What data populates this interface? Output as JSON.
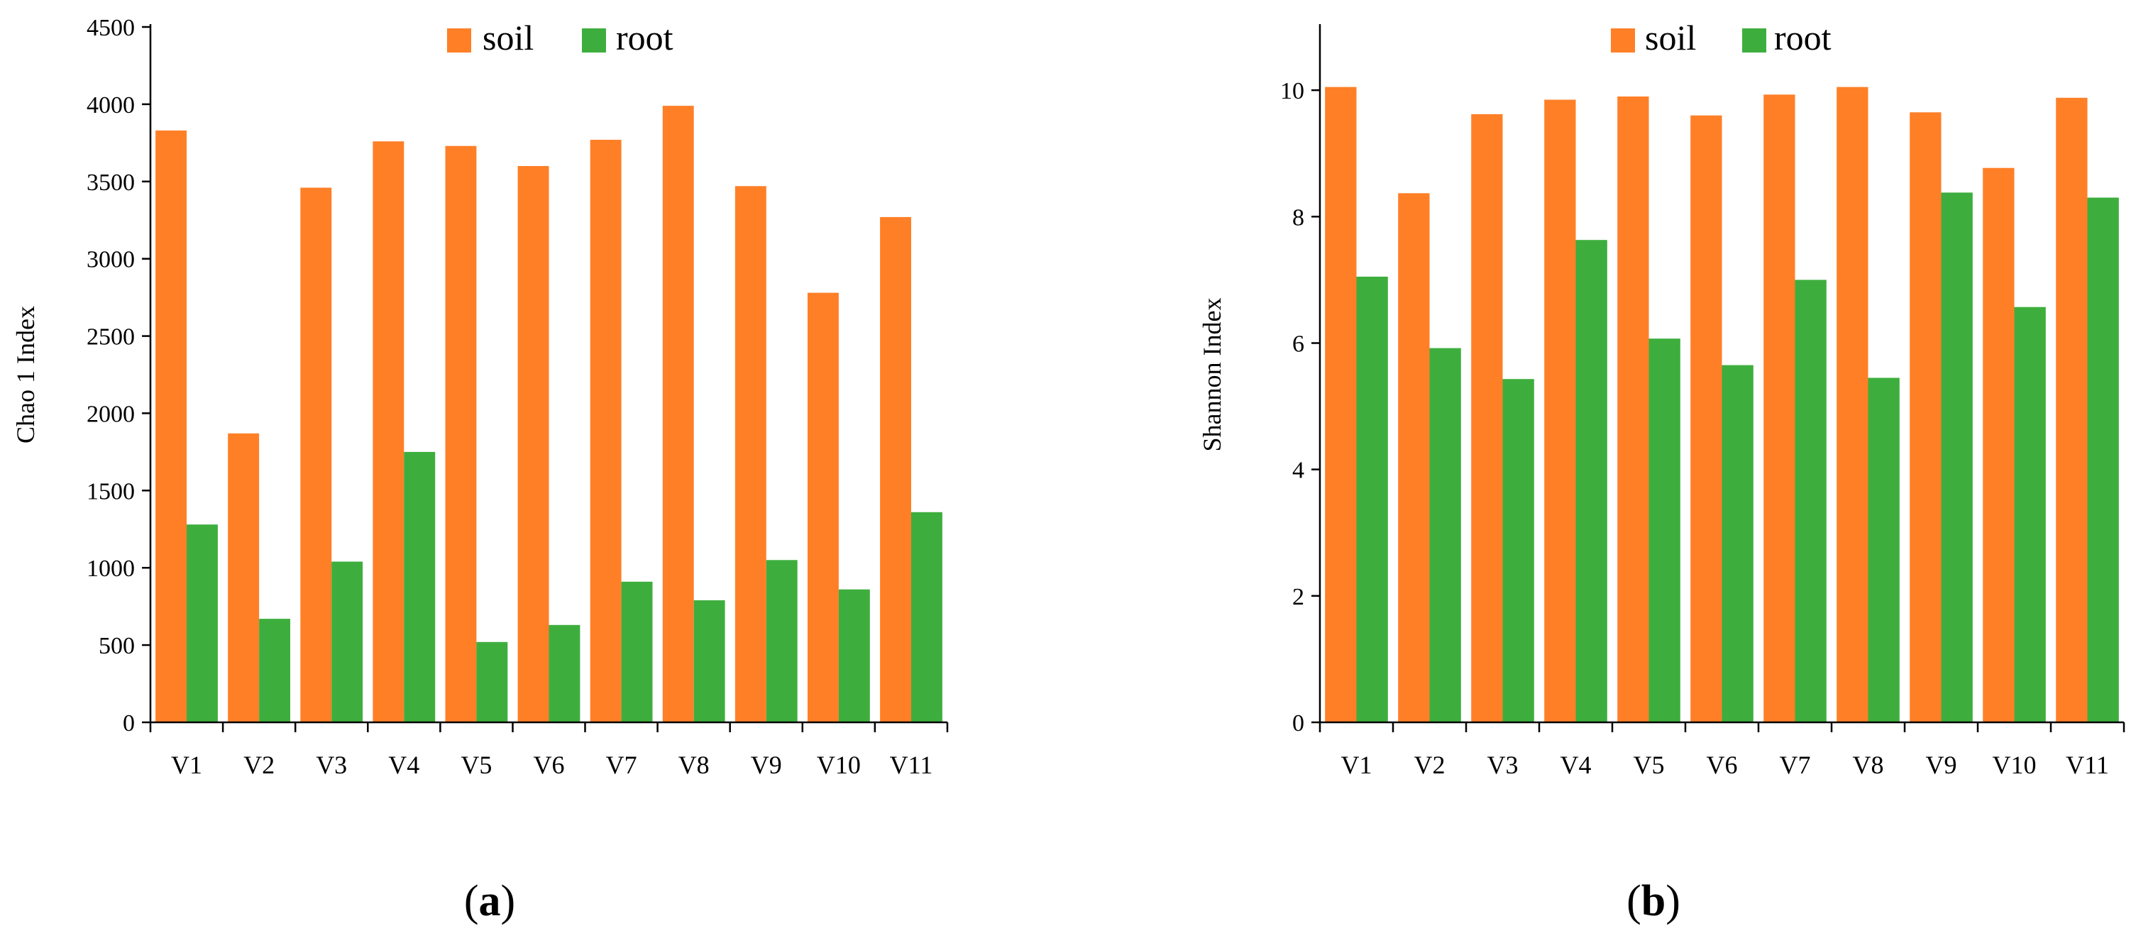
{
  "colors": {
    "soil": "#FF7F27",
    "root": "#3DAE3D",
    "axis": "#000000"
  },
  "chart_data": [
    {
      "type": "bar",
      "panel": "(a)",
      "panel_letter": "a",
      "categories": [
        "V1",
        "V2",
        "V3",
        "V4",
        "V5",
        "V6",
        "V7",
        "V8",
        "V9",
        "V10",
        "V11"
      ],
      "series": [
        {
          "name": "soil",
          "values": [
            3830,
            1870,
            3460,
            3760,
            3730,
            3600,
            3770,
            3990,
            3470,
            2780,
            3270
          ]
        },
        {
          "name": "root",
          "values": [
            1280,
            670,
            1040,
            1750,
            520,
            630,
            910,
            790,
            1050,
            860,
            1360
          ]
        }
      ],
      "title": "",
      "xlabel": "",
      "ylabel": "Chao 1 Index",
      "ylim": [
        0,
        4500
      ],
      "yticks": [
        0,
        500,
        1000,
        1500,
        2000,
        2500,
        3000,
        3500,
        4000,
        4500
      ],
      "legend": "top-center",
      "grid": false
    },
    {
      "type": "bar",
      "panel": "(b)",
      "panel_letter": "b",
      "categories": [
        "V1",
        "V2",
        "V3",
        "V4",
        "V5",
        "V6",
        "V7",
        "V8",
        "V9",
        "V10",
        "V11"
      ],
      "series": [
        {
          "name": "soil",
          "values": [
            10.05,
            8.37,
            9.62,
            9.85,
            9.9,
            9.6,
            9.93,
            10.05,
            9.65,
            8.77,
            9.88
          ]
        },
        {
          "name": "root",
          "values": [
            7.05,
            5.92,
            5.43,
            7.63,
            6.07,
            5.65,
            7.0,
            5.45,
            8.38,
            6.57,
            8.3
          ]
        }
      ],
      "title": "",
      "xlabel": "",
      "ylabel": "Shannon Index",
      "ylim": [
        0,
        11
      ],
      "yticks": [
        0,
        2,
        4,
        6,
        8,
        10
      ],
      "legend": "top-center",
      "grid": false
    }
  ]
}
